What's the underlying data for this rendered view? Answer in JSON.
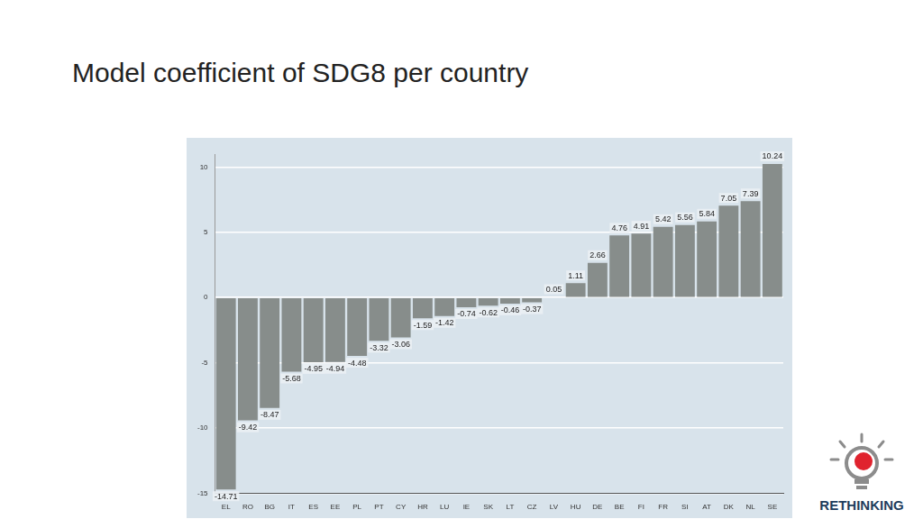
{
  "chart_data": {
    "type": "bar",
    "title": "Model coefficient of SDG8 per country",
    "categories": [
      "EL",
      "RO",
      "BG",
      "IT",
      "ES",
      "EE",
      "PL",
      "PT",
      "CY",
      "HR",
      "LU",
      "IE",
      "SK",
      "LT",
      "CZ",
      "LV",
      "HU",
      "DE",
      "BE",
      "FI",
      "FR",
      "SI",
      "AT",
      "DK",
      "NL",
      "SE"
    ],
    "values": [
      -14.71,
      -9.42,
      -8.47,
      -5.68,
      -4.95,
      -4.94,
      -4.48,
      -3.32,
      -3.06,
      -1.59,
      -1.42,
      -0.74,
      -0.62,
      -0.46,
      -0.37,
      0.05,
      1.11,
      2.66,
      4.76,
      4.91,
      5.42,
      5.56,
      5.84,
      7.05,
      7.39,
      10.24
    ],
    "color": "#878d8b",
    "ylim": [
      -15,
      11
    ],
    "yticks": [
      -15,
      -10,
      -5,
      0,
      5,
      10
    ],
    "grid": true,
    "data_labels": true
  },
  "logo": "RETHINKING"
}
